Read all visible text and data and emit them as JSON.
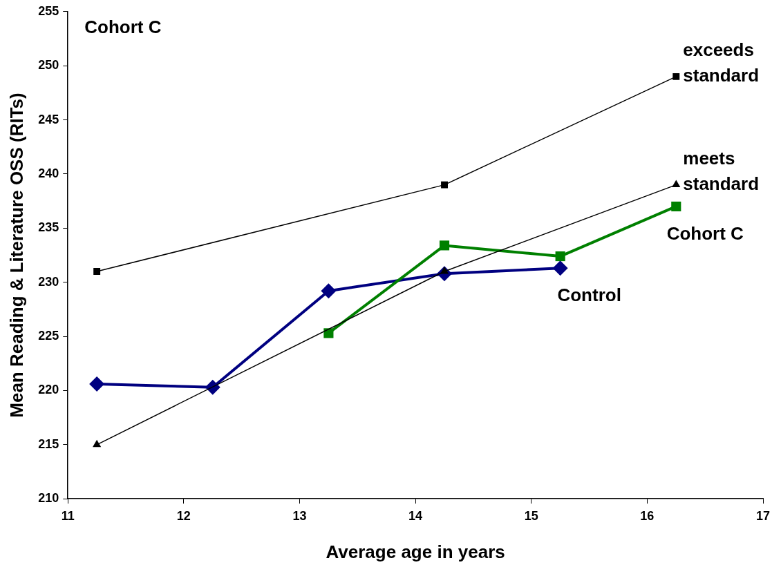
{
  "chart_data": {
    "type": "line",
    "title": "Cohort C",
    "xlabel": "Average age in years",
    "ylabel": "Mean Reading & Literature OSS (RITs)",
    "xlim": [
      11,
      17
    ],
    "xticks": [
      11,
      12,
      13,
      14,
      15,
      16,
      17
    ],
    "ylim": [
      210,
      255
    ],
    "yticks": [
      210,
      215,
      220,
      225,
      230,
      235,
      240,
      245,
      250,
      255
    ],
    "grid": false,
    "legend": false,
    "series": [
      {
        "name": "exceeds standard",
        "color": "#000000",
        "marker": "square",
        "x": [
          11.25,
          14.25,
          16.25
        ],
        "values": [
          231,
          239,
          249
        ]
      },
      {
        "name": "meets standard",
        "color": "#000000",
        "marker": "triangle",
        "x": [
          11.25,
          14.25,
          16.25
        ],
        "values": [
          215,
          231,
          239
        ]
      },
      {
        "name": "Cohort C",
        "color": "#008000",
        "marker": "square",
        "x": [
          13.25,
          14.25,
          15.25,
          16.25
        ],
        "values": [
          225.3,
          233.4,
          232.4,
          237
        ]
      },
      {
        "name": "Control",
        "color": "#000080",
        "marker": "diamond",
        "x": [
          11.25,
          12.25,
          13.25,
          14.25,
          15.25
        ],
        "values": [
          220.6,
          220.3,
          229.2,
          230.8,
          231.3
        ]
      }
    ]
  }
}
